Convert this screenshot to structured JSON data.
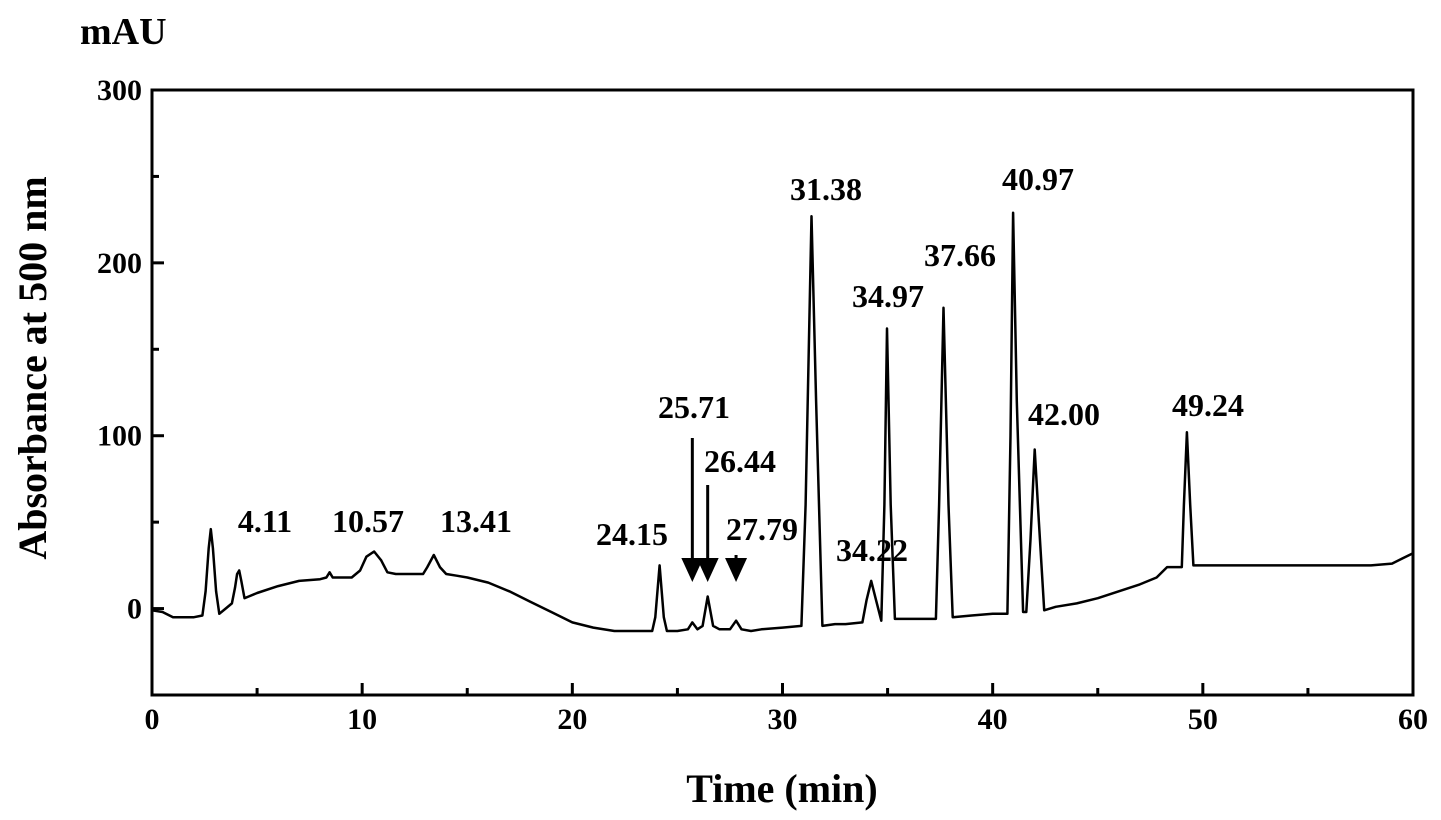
{
  "chart_data": {
    "type": "line",
    "unit_label": "mAU",
    "xlabel": "Time (min)",
    "ylabel": "Absorbance at 500 nm",
    "xlim": [
      0,
      60
    ],
    "ylim": [
      -50,
      300
    ],
    "x_ticks": [
      0,
      10,
      20,
      30,
      40,
      50,
      60
    ],
    "y_ticks": [
      0,
      100,
      200,
      300
    ],
    "grid": false,
    "colors": {
      "line": "#000000",
      "axis": "#000000"
    },
    "series": [
      {
        "points": [
          [
            0,
            -1
          ],
          [
            0.5,
            -2
          ],
          [
            1.0,
            -5
          ],
          [
            1.5,
            -5
          ],
          [
            2.0,
            -5
          ],
          [
            2.4,
            -4
          ],
          [
            2.55,
            10
          ],
          [
            2.7,
            35
          ],
          [
            2.8,
            46
          ],
          [
            2.9,
            35
          ],
          [
            3.05,
            10
          ],
          [
            3.2,
            -3
          ],
          [
            3.5,
            0
          ],
          [
            3.8,
            3
          ],
          [
            3.95,
            12
          ],
          [
            4.05,
            20
          ],
          [
            4.15,
            22
          ],
          [
            4.25,
            16
          ],
          [
            4.4,
            6
          ],
          [
            4.6,
            7
          ],
          [
            5,
            9
          ],
          [
            6,
            13
          ],
          [
            7,
            16
          ],
          [
            8,
            17
          ],
          [
            8.3,
            18
          ],
          [
            8.45,
            21
          ],
          [
            8.6,
            18
          ],
          [
            9,
            18
          ],
          [
            9.5,
            18
          ],
          [
            9.9,
            22
          ],
          [
            10.2,
            30
          ],
          [
            10.57,
            33
          ],
          [
            10.9,
            28
          ],
          [
            11.2,
            21
          ],
          [
            11.6,
            20
          ],
          [
            12,
            20
          ],
          [
            12.5,
            20
          ],
          [
            12.9,
            20
          ],
          [
            13.1,
            24
          ],
          [
            13.41,
            31
          ],
          [
            13.7,
            24
          ],
          [
            14,
            20
          ],
          [
            14.5,
            19
          ],
          [
            15,
            18
          ],
          [
            16,
            15
          ],
          [
            17,
            10
          ],
          [
            18,
            4
          ],
          [
            19,
            -2
          ],
          [
            20,
            -8
          ],
          [
            21,
            -11
          ],
          [
            22,
            -13
          ],
          [
            23,
            -13
          ],
          [
            23.8,
            -13
          ],
          [
            23.95,
            -5
          ],
          [
            24.15,
            25
          ],
          [
            24.35,
            -5
          ],
          [
            24.5,
            -13
          ],
          [
            25,
            -13
          ],
          [
            25.5,
            -12
          ],
          [
            25.71,
            -8
          ],
          [
            25.95,
            -12
          ],
          [
            26.2,
            -10
          ],
          [
            26.44,
            7
          ],
          [
            26.7,
            -10
          ],
          [
            27,
            -12
          ],
          [
            27.5,
            -12
          ],
          [
            27.79,
            -7
          ],
          [
            28.05,
            -12
          ],
          [
            28.5,
            -13
          ],
          [
            29,
            -12
          ],
          [
            30,
            -11
          ],
          [
            30.9,
            -10
          ],
          [
            31.1,
            60
          ],
          [
            31.38,
            227
          ],
          [
            31.6,
            120
          ],
          [
            31.9,
            -10
          ],
          [
            32.5,
            -9
          ],
          [
            33,
            -9
          ],
          [
            33.8,
            -8
          ],
          [
            34.0,
            5
          ],
          [
            34.22,
            16
          ],
          [
            34.45,
            5
          ],
          [
            34.7,
            -7
          ],
          [
            34.85,
            60
          ],
          [
            34.97,
            162
          ],
          [
            35.15,
            60
          ],
          [
            35.35,
            -6
          ],
          [
            36,
            -6
          ],
          [
            37.3,
            -6
          ],
          [
            37.45,
            60
          ],
          [
            37.66,
            174
          ],
          [
            37.9,
            60
          ],
          [
            38.1,
            -5
          ],
          [
            39,
            -4
          ],
          [
            40,
            -3
          ],
          [
            40.7,
            -3
          ],
          [
            40.85,
            100
          ],
          [
            40.97,
            229
          ],
          [
            41.15,
            120
          ],
          [
            41.45,
            -2
          ],
          [
            41.6,
            -2
          ],
          [
            41.8,
            40
          ],
          [
            42.0,
            92
          ],
          [
            42.2,
            50
          ],
          [
            42.45,
            -1
          ],
          [
            43,
            1
          ],
          [
            44,
            3
          ],
          [
            45,
            6
          ],
          [
            46,
            10
          ],
          [
            47,
            14
          ],
          [
            47.8,
            18
          ],
          [
            48.3,
            24
          ],
          [
            49.0,
            24
          ],
          [
            49.1,
            60
          ],
          [
            49.24,
            102
          ],
          [
            49.4,
            60
          ],
          [
            49.55,
            25
          ],
          [
            50,
            25
          ],
          [
            52,
            25
          ],
          [
            54,
            25
          ],
          [
            56,
            25
          ],
          [
            58,
            25
          ],
          [
            59,
            26
          ],
          [
            59.5,
            29
          ],
          [
            60,
            32
          ]
        ]
      }
    ],
    "peak_labels": [
      {
        "label": "4.11",
        "x": 4.11,
        "y": 22
      },
      {
        "label": "10.57",
        "x": 10.57,
        "y": 33
      },
      {
        "label": "13.41",
        "x": 13.41,
        "y": 31
      },
      {
        "label": "24.15",
        "x": 24.15,
        "y": 25
      },
      {
        "label": "25.71",
        "x": 25.71,
        "y": -8,
        "arrow": true
      },
      {
        "label": "26.44",
        "x": 26.44,
        "y": 7,
        "arrow": true
      },
      {
        "label": "27.79",
        "x": 27.79,
        "y": -7,
        "arrow": true
      },
      {
        "label": "31.38",
        "x": 31.38,
        "y": 227
      },
      {
        "label": "34.22",
        "x": 34.22,
        "y": 16
      },
      {
        "label": "34.97",
        "x": 34.97,
        "y": 162
      },
      {
        "label": "37.66",
        "x": 37.66,
        "y": 174
      },
      {
        "label": "40.97",
        "x": 40.97,
        "y": 229
      },
      {
        "label": "42.00",
        "x": 42.0,
        "y": 92
      },
      {
        "label": "49.24",
        "x": 49.24,
        "y": 102
      }
    ]
  }
}
